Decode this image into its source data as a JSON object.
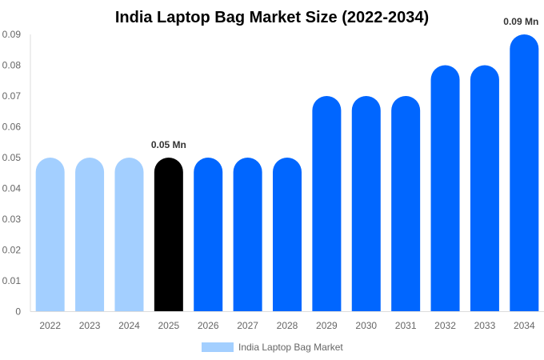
{
  "chart_data": {
    "type": "bar",
    "title": "India Laptop Bag Market Size (2022-2034)",
    "categories": [
      "2022",
      "2023",
      "2024",
      "2025",
      "2026",
      "2027",
      "2028",
      "2029",
      "2030",
      "2031",
      "2032",
      "2033",
      "2034"
    ],
    "series": [
      {
        "name": "India Laptop Bag Market",
        "values": [
          0.05,
          0.05,
          0.05,
          0.05,
          0.05,
          0.05,
          0.05,
          0.07,
          0.07,
          0.07,
          0.08,
          0.08,
          0.09
        ]
      }
    ],
    "bar_colors": [
      "#a3cfff",
      "#a3cfff",
      "#a3cfff",
      "#000000",
      "#0066ff",
      "#0066ff",
      "#0066ff",
      "#0066ff",
      "#0066ff",
      "#0066ff",
      "#0066ff",
      "#0066ff",
      "#0066ff"
    ],
    "data_labels": [
      {
        "index": 3,
        "text": "0.05 Mn"
      },
      {
        "index": 12,
        "text": "0.09 Mn"
      }
    ],
    "yticks": [
      "0",
      "0.01",
      "0.02",
      "0.03",
      "0.04",
      "0.05",
      "0.06",
      "0.07",
      "0.08",
      "0.09"
    ],
    "ylim": [
      0,
      0.09
    ],
    "grid": false,
    "legend": {
      "position": "bottom",
      "label": "India Laptop Bag Market",
      "color": "#a3cfff"
    }
  }
}
